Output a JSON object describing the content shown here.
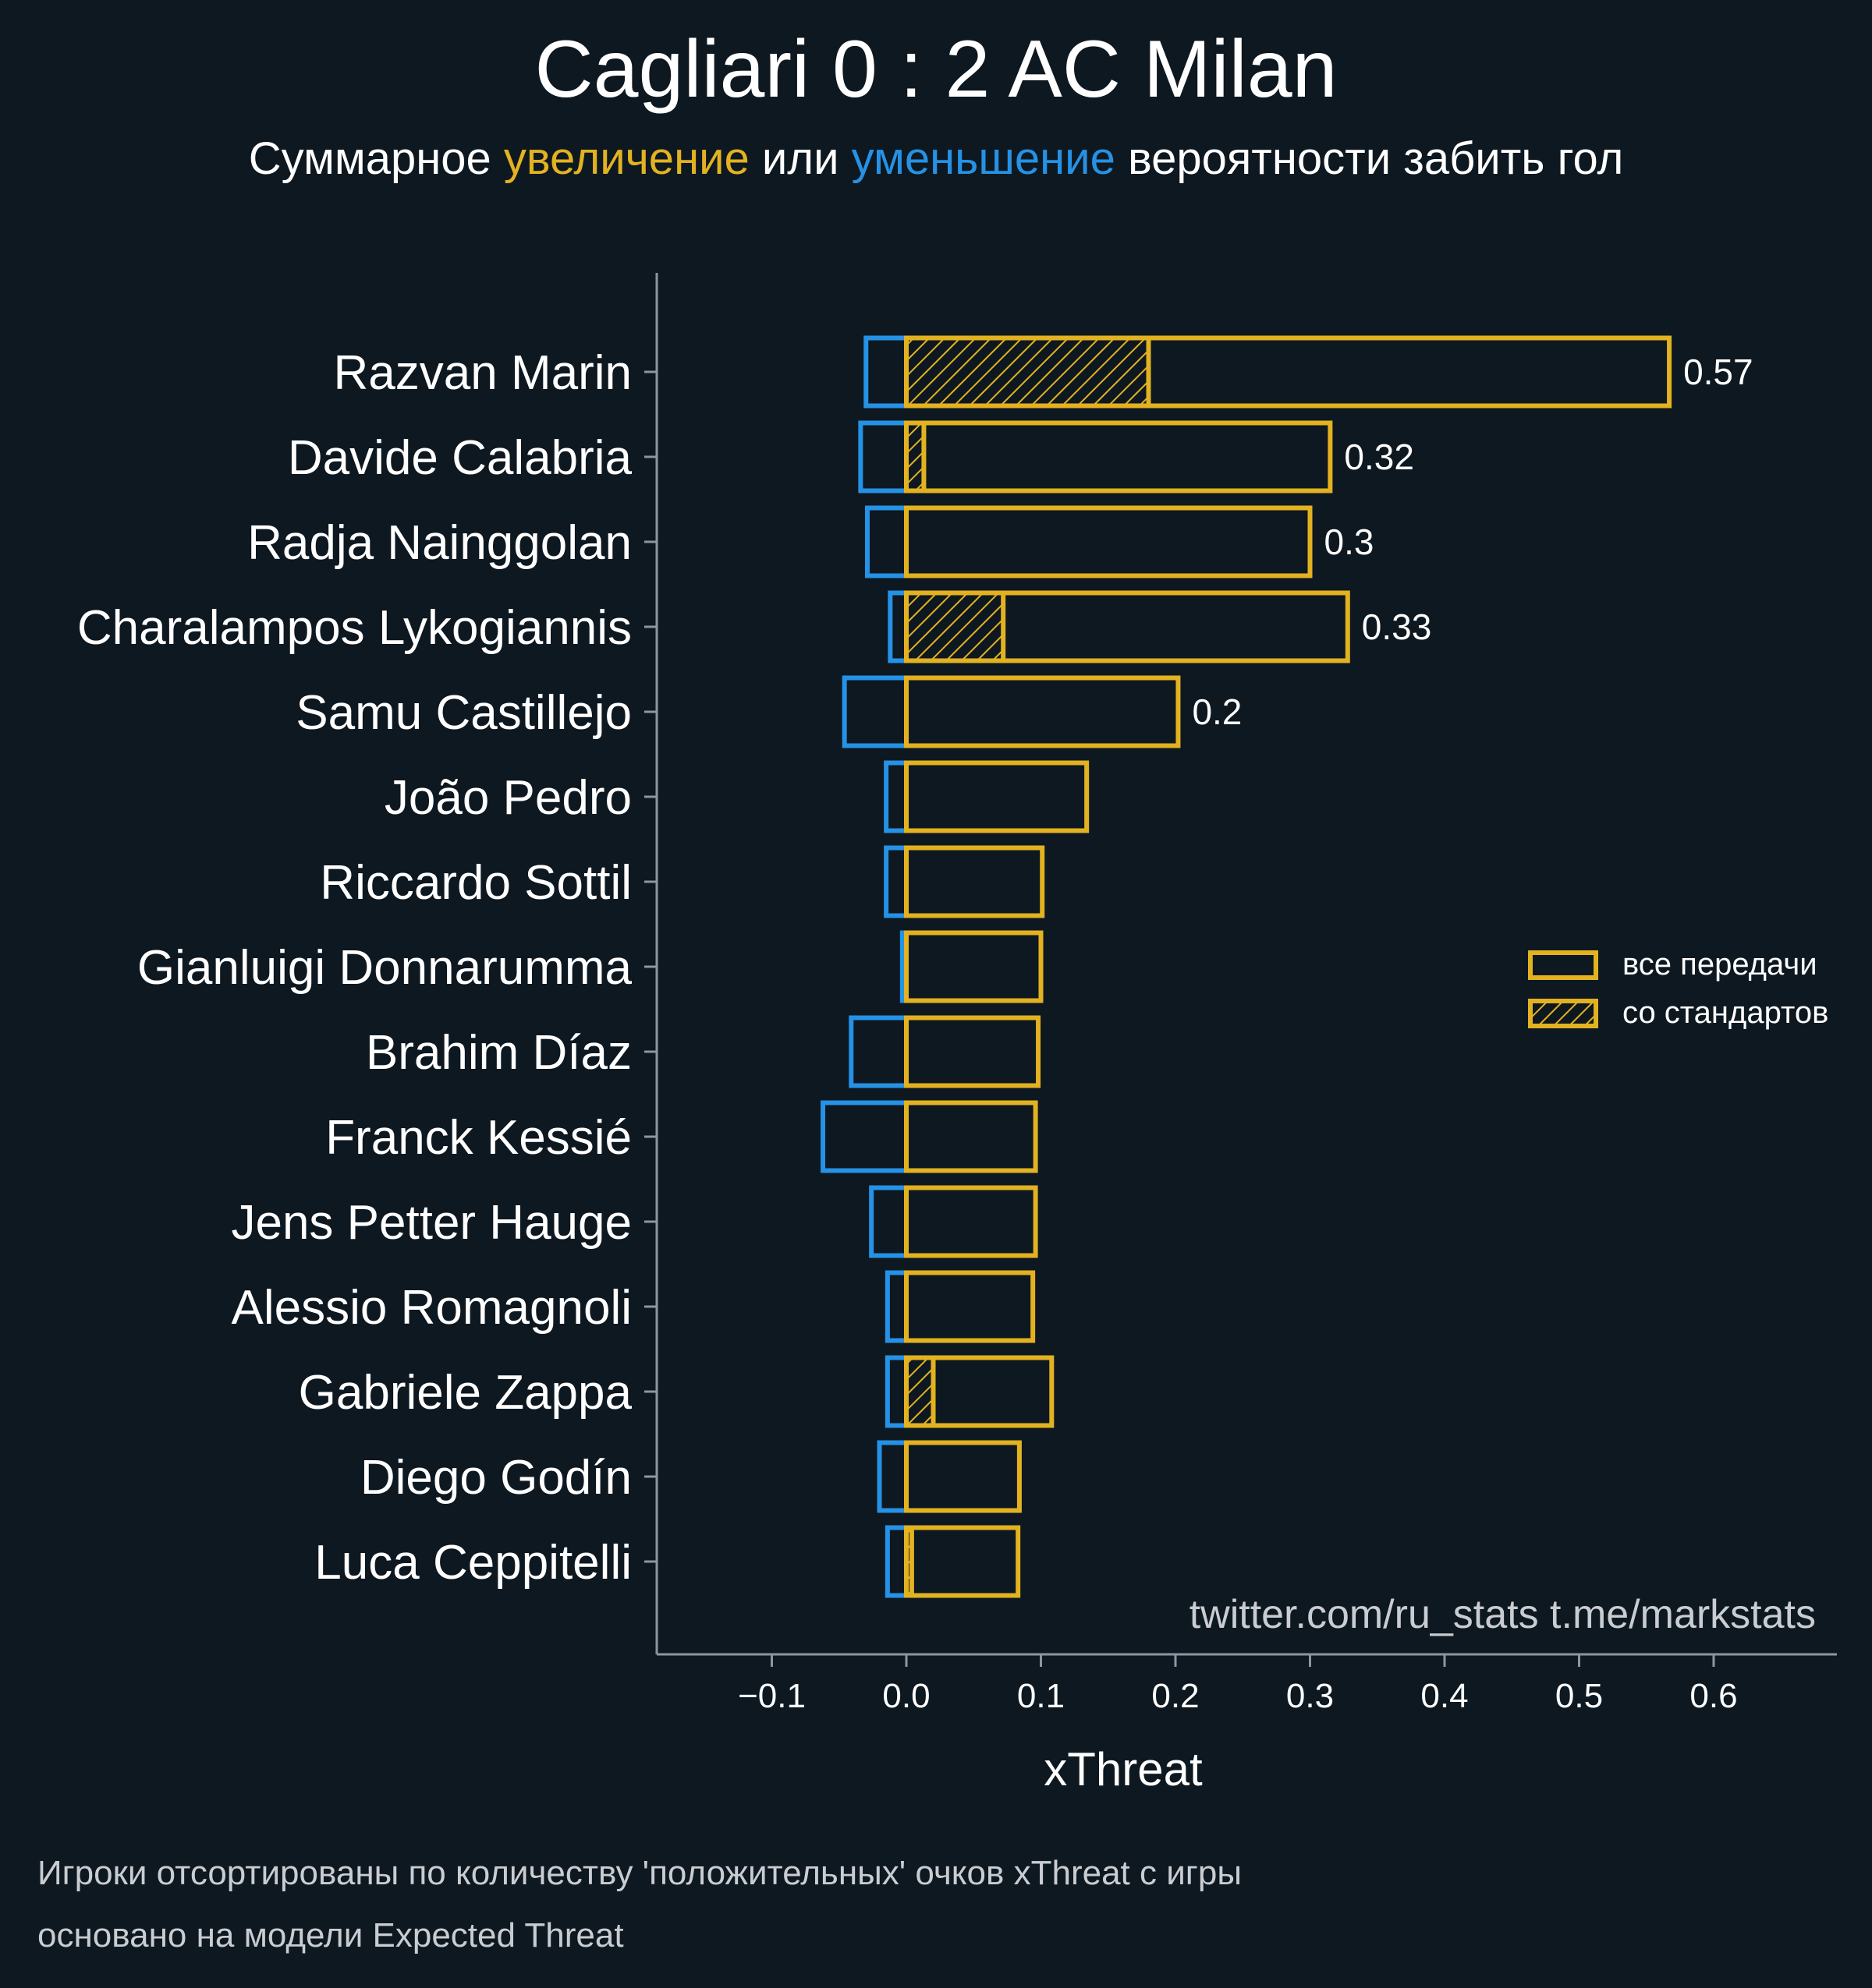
{
  "title": "Cagliari 0 : 2 AC Milan",
  "subtitle": {
    "part1": "Суммарное ",
    "increase": "увеличение",
    "part2": " или ",
    "decrease": "уменьшение",
    "part3": " вероятности забить гол"
  },
  "colors": {
    "background": "#0e1820",
    "positive": "#e3b221",
    "negative": "#2592e6",
    "axis": "#8a98a3",
    "text": "#ffffff",
    "muted": "#c9cdd1"
  },
  "watermark": "twitter.com/ru_stats  t.me/markstats",
  "footnotes": [
    "Игроки отсортированы по количеству 'положительных' очков xThreat с игры",
    "основано на модели Expected Threat"
  ],
  "chart_data": {
    "type": "bar",
    "orientation": "horizontal",
    "xlabel": "xThreat",
    "xlim": [
      -0.187,
      0.69
    ],
    "xticks": [
      -0.1,
      0.0,
      0.1,
      0.2,
      0.3,
      0.4,
      0.5,
      0.6
    ],
    "xtick_labels": [
      "−0.1",
      "0.0",
      "0.1",
      "0.2",
      "0.3",
      "0.4",
      "0.5",
      "0.6"
    ],
    "legend": {
      "position": "right",
      "entries": [
        "все передачи",
        "со стандартов"
      ]
    },
    "categories": [
      "Razvan Marin",
      "Davide Calabria",
      "Radja Nainggolan",
      "Charalampos Lykogiannis",
      "Samu Castillejo",
      "João Pedro",
      "Riccardo Sottil",
      "Gianluigi Donnarumma",
      "Brahim Díaz",
      "Franck Kessié",
      "Jens Petter Hauge",
      "Alessio Romagnoli",
      "Gabriele Zappa",
      "Diego Godín",
      "Luca Ceppitelli"
    ],
    "series": [
      {
        "name": "все передачи",
        "values": [
          0.567,
          0.315,
          0.3,
          0.328,
          0.202,
          0.134,
          0.101,
          0.1,
          0.098,
          0.096,
          0.096,
          0.094,
          0.108,
          0.084,
          0.083
        ]
      },
      {
        "name": "со стандартов",
        "values": [
          0.18,
          0.013,
          0,
          0.072,
          0,
          0,
          0,
          0,
          0,
          0,
          0,
          0,
          0.02,
          0,
          0.004
        ]
      },
      {
        "values": [
          -0.03,
          -0.034,
          -0.029,
          -0.012,
          -0.046,
          -0.015,
          -0.015,
          -0.003,
          -0.041,
          -0.062,
          -0.026,
          -0.014,
          -0.014,
          -0.02,
          -0.014
        ]
      }
    ],
    "data_labels": [
      "0.57",
      "0.32",
      "0.3",
      "0.33",
      "0.2",
      "",
      "",
      "",
      "",
      "",
      "",
      "",
      "",
      "",
      ""
    ]
  }
}
